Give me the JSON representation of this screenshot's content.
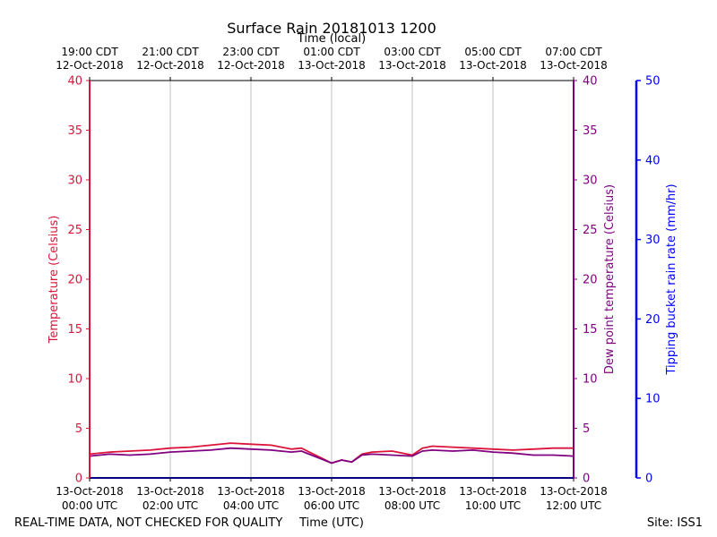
{
  "chart_data": {
    "type": "line",
    "title": "Surface Rain 20181013 1200",
    "top_axis_label": "Time (local)",
    "xlabel": "Time (UTC)",
    "x_range": [
      "2018-10-13T00:00Z",
      "2018-10-13T12:00Z"
    ],
    "x_ticks_utc": [
      {
        "time": "00:00 UTC",
        "date": "13-Oct-2018"
      },
      {
        "time": "02:00 UTC",
        "date": "13-Oct-2018"
      },
      {
        "time": "04:00 UTC",
        "date": "13-Oct-2018"
      },
      {
        "time": "06:00 UTC",
        "date": "13-Oct-2018"
      },
      {
        "time": "08:00 UTC",
        "date": "13-Oct-2018"
      },
      {
        "time": "10:00 UTC",
        "date": "13-Oct-2018"
      },
      {
        "time": "12:00 UTC",
        "date": "13-Oct-2018"
      }
    ],
    "x_ticks_local": [
      {
        "time": "19:00 CDT",
        "date": "12-Oct-2018"
      },
      {
        "time": "21:00 CDT",
        "date": "12-Oct-2018"
      },
      {
        "time": "23:00 CDT",
        "date": "12-Oct-2018"
      },
      {
        "time": "01:00 CDT",
        "date": "13-Oct-2018"
      },
      {
        "time": "03:00 CDT",
        "date": "13-Oct-2018"
      },
      {
        "time": "05:00 CDT",
        "date": "13-Oct-2018"
      },
      {
        "time": "07:00 CDT",
        "date": "13-Oct-2018"
      }
    ],
    "y_left": {
      "label": "Temperature (Celsius)",
      "range": [
        0,
        40
      ],
      "ticks": [
        "0",
        "5",
        "10",
        "15",
        "20",
        "25",
        "30",
        "35",
        "40"
      ],
      "color": "#dc143c"
    },
    "y_right1": {
      "label": "Dew point temperature (Celsius)",
      "range": [
        0,
        40
      ],
      "ticks": [
        "0",
        "5",
        "10",
        "15",
        "20",
        "25",
        "30",
        "35",
        "40"
      ],
      "color": "#800080"
    },
    "y_right2": {
      "label": "Tipping bucket rain rate (mm/hr)",
      "range": [
        0,
        50
      ],
      "ticks": [
        "0",
        "10",
        "20",
        "30",
        "40",
        "50"
      ],
      "color": "#0000ff"
    },
    "grid": "vertical",
    "series": [
      {
        "name": "Temperature",
        "color": "#dc143c",
        "x_hours_utc": [
          0,
          0.5,
          1,
          1.5,
          2,
          2.5,
          3,
          3.5,
          4,
          4.5,
          5,
          5.25,
          5.5,
          5.75,
          6,
          6.25,
          6.5,
          6.75,
          7,
          7.5,
          8,
          8.25,
          8.5,
          9,
          9.5,
          10,
          10.5,
          11,
          11.5,
          12
        ],
        "values": [
          2.4,
          2.6,
          2.7,
          2.8,
          3.0,
          3.1,
          3.3,
          3.5,
          3.4,
          3.3,
          2.9,
          3.0,
          2.5,
          2.0,
          1.5,
          1.8,
          1.6,
          2.4,
          2.6,
          2.7,
          2.3,
          3.0,
          3.2,
          3.1,
          3.0,
          2.9,
          2.8,
          2.9,
          3.0,
          3.0
        ]
      },
      {
        "name": "Dew point temperature",
        "color": "#800080",
        "x_hours_utc": [
          0,
          0.5,
          1,
          1.5,
          2,
          2.5,
          3,
          3.5,
          4,
          4.5,
          5,
          5.25,
          5.5,
          5.75,
          6,
          6.25,
          6.5,
          6.75,
          7,
          7.5,
          8,
          8.25,
          8.5,
          9,
          9.5,
          10,
          10.5,
          11,
          11.5,
          12
        ],
        "values": [
          2.2,
          2.4,
          2.3,
          2.4,
          2.6,
          2.7,
          2.8,
          3.0,
          2.9,
          2.8,
          2.6,
          2.7,
          2.3,
          1.9,
          1.5,
          1.8,
          1.6,
          2.3,
          2.4,
          2.3,
          2.2,
          2.7,
          2.8,
          2.7,
          2.8,
          2.6,
          2.5,
          2.3,
          2.3,
          2.2
        ]
      },
      {
        "name": "Tipping bucket rain rate",
        "color": "#0000ff",
        "x_hours_utc": [
          0,
          12
        ],
        "values": [
          0,
          0
        ]
      }
    ],
    "annotations": {
      "status": "REAL-TIME DATA, NOT CHECKED FOR QUALITY",
      "site": "Site: ISS1"
    }
  }
}
